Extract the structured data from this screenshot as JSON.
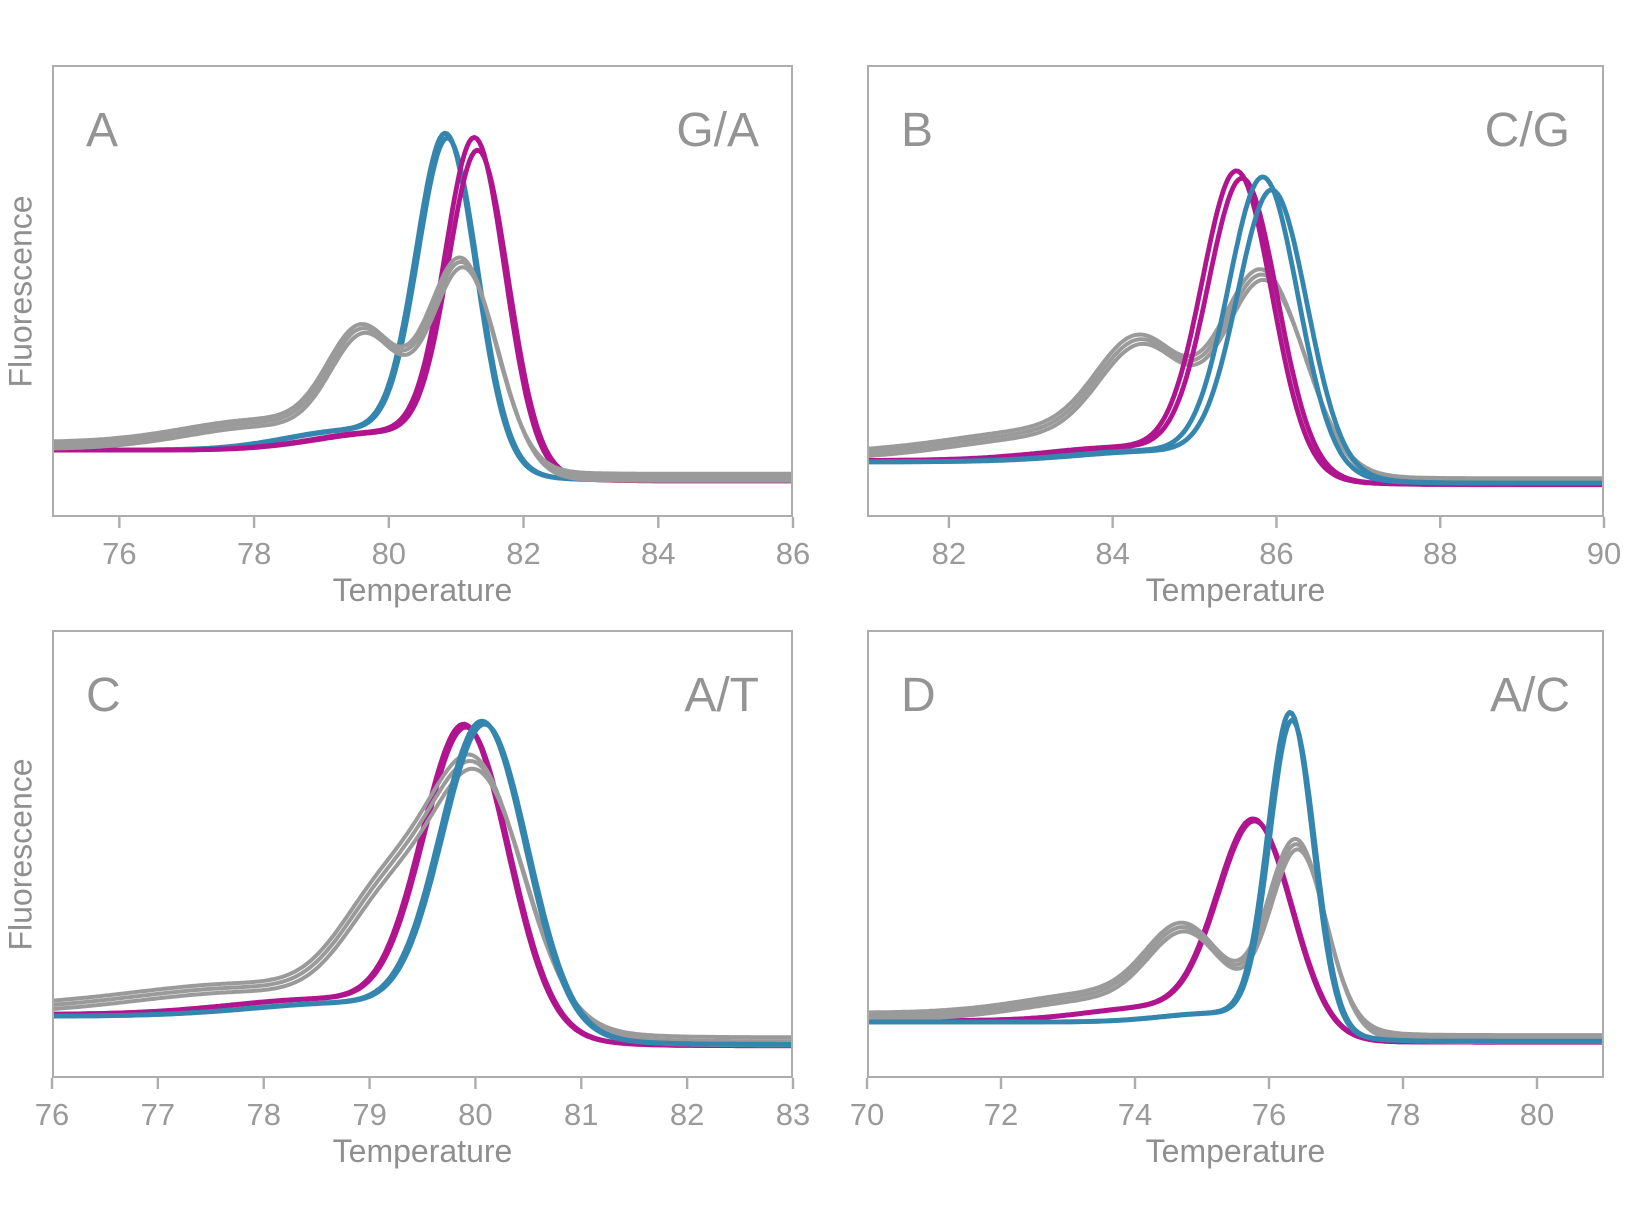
{
  "page": {
    "background": "#ffffff"
  },
  "colors": {
    "blue": "#3486ae",
    "magenta": "#b0148f",
    "gray": "#9a9a9a",
    "frame": "#adadad",
    "tick_text": "#9a9a9a",
    "label_text": "#8f8f8f",
    "panel_letter": "#949494"
  },
  "chart_data": [
    {
      "id": "A",
      "type": "line",
      "corner": "A",
      "genotype": "G/A",
      "xlabel": "Temperature",
      "ylabel": "Fluorescence",
      "xlim": [
        75,
        86
      ],
      "xticks": [
        76,
        78,
        80,
        82,
        84,
        86
      ],
      "series": [
        {
          "name": "series-blue",
          "color": "blue",
          "stroke_width": 4.8,
          "base_left": 0.148,
          "base_right": 0.082,
          "base_drop_center": 81.55,
          "peaks": [
            {
              "tm": 80.85,
              "height": 0.69,
              "width": 0.44
            },
            {
              "tm": 79.5,
              "height": 0.045,
              "width": 1.0
            }
          ],
          "replicates": [
            [
              0,
              1,
              0
            ],
            [
              0.03,
              0.985,
              0
            ]
          ]
        },
        {
          "name": "series-magenta",
          "color": "magenta",
          "stroke_width": 4.8,
          "base_left": 0.148,
          "base_right": 0.08,
          "base_drop_center": 81.95,
          "peaks": [
            {
              "tm": 81.28,
              "height": 0.684,
              "width": 0.44
            },
            {
              "tm": 79.9,
              "height": 0.04,
              "width": 1.0
            }
          ],
          "replicates": [
            [
              0,
              1,
              0
            ],
            [
              0.05,
              0.96,
              0
            ]
          ]
        },
        {
          "name": "series-gray",
          "color": "gray",
          "stroke_width": 4.0,
          "base_left": 0.158,
          "base_right": 0.088,
          "base_drop_center": 81.7,
          "peaks": [
            {
              "tm": 79.62,
              "height": 0.23,
              "width": 0.5
            },
            {
              "tm": 81.1,
              "height": 0.41,
              "width": 0.5
            },
            {
              "tm": 78.2,
              "height": 0.05,
              "width": 1.2
            }
          ],
          "replicates": [
            [
              0,
              1,
              0
            ],
            [
              0.025,
              0.99,
              3.5
            ],
            [
              -0.02,
              1.005,
              -3.5
            ]
          ]
        }
      ]
    },
    {
      "id": "B",
      "type": "line",
      "corner": "B",
      "genotype": "C/G",
      "xlabel": "Temperature",
      "ylabel": "",
      "xlim": [
        81,
        90
      ],
      "xticks": [
        82,
        84,
        86,
        88,
        90
      ],
      "series": [
        {
          "name": "series-gray",
          "color": "gray",
          "stroke_width": 4.0,
          "base_left": 0.135,
          "base_right": 0.078,
          "base_drop_center": 86.45,
          "peaks": [
            {
              "tm": 84.35,
              "height": 0.22,
              "width": 0.52
            },
            {
              "tm": 85.85,
              "height": 0.4,
              "width": 0.5
            },
            {
              "tm": 83.3,
              "height": 0.05,
              "width": 1.2
            }
          ],
          "replicates": [
            [
              0,
              1,
              0
            ],
            [
              0.02,
              0.99,
              3.5
            ],
            [
              -0.02,
              1.01,
              -3.5
            ]
          ]
        },
        {
          "name": "series-magenta",
          "color": "magenta",
          "stroke_width": 4.8,
          "base_left": 0.125,
          "base_right": 0.072,
          "base_drop_center": 86.15,
          "peaks": [
            {
              "tm": 85.52,
              "height": 0.635,
              "width": 0.42
            },
            {
              "tm": 84.2,
              "height": 0.03,
              "width": 1.0
            }
          ],
          "replicates": [
            [
              0,
              1,
              0
            ],
            [
              0.07,
              0.975,
              0
            ]
          ]
        },
        {
          "name": "series-blue",
          "color": "blue",
          "stroke_width": 4.8,
          "base_left": 0.122,
          "base_right": 0.075,
          "base_drop_center": 86.55,
          "peaks": [
            {
              "tm": 85.84,
              "height": 0.625,
              "width": 0.42
            },
            {
              "tm": 84.5,
              "height": 0.025,
              "width": 1.0
            }
          ],
          "replicates": [
            [
              0,
              1,
              0
            ],
            [
              0.11,
              0.955,
              0
            ]
          ]
        }
      ]
    },
    {
      "id": "C",
      "type": "line",
      "corner": "C",
      "genotype": "A/T",
      "xlabel": "Temperature",
      "ylabel": "Fluorescence",
      "xlim": [
        76,
        83
      ],
      "xticks": [
        76,
        77,
        78,
        79,
        80,
        81,
        82,
        83
      ],
      "series": [
        {
          "name": "series-magenta",
          "color": "magenta",
          "stroke_width": 4.8,
          "base_left": 0.142,
          "base_right": 0.072,
          "base_drop_center": 80.5,
          "peaks": [
            {
              "tm": 79.9,
              "height": 0.645,
              "width": 0.4
            },
            {
              "tm": 78.6,
              "height": 0.035,
              "width": 0.9
            }
          ],
          "replicates": [
            [
              0,
              1,
              0
            ],
            [
              0.02,
              0.99,
              0
            ]
          ]
        },
        {
          "name": "series-gray",
          "color": "gray",
          "stroke_width": 4.0,
          "base_left": 0.152,
          "base_right": 0.082,
          "base_drop_center": 80.75,
          "peaks": [
            {
              "tm": 79.15,
              "height": 0.21,
              "width": 0.42
            },
            {
              "tm": 80.02,
              "height": 0.525,
              "width": 0.44
            },
            {
              "tm": 77.9,
              "height": 0.05,
              "width": 1.1
            }
          ],
          "replicates": [
            [
              0,
              1,
              0
            ],
            [
              0.02,
              0.985,
              4
            ],
            [
              -0.02,
              1.01,
              -4
            ]
          ]
        },
        {
          "name": "series-blue",
          "color": "blue",
          "stroke_width": 4.8,
          "base_left": 0.138,
          "base_right": 0.075,
          "base_drop_center": 80.72,
          "peaks": [
            {
              "tm": 80.07,
              "height": 0.655,
              "width": 0.4
            },
            {
              "tm": 78.8,
              "height": 0.03,
              "width": 0.9
            }
          ],
          "replicates": [
            [
              0,
              1,
              0
            ],
            [
              0.025,
              0.99,
              0
            ]
          ]
        }
      ]
    },
    {
      "id": "D",
      "type": "line",
      "corner": "D",
      "genotype": "A/C",
      "xlabel": "Temperature",
      "ylabel": "",
      "xlim": [
        70,
        81
      ],
      "xticks": [
        70,
        72,
        74,
        76,
        78,
        80
      ],
      "series": [
        {
          "name": "series-magenta",
          "color": "magenta",
          "stroke_width": 4.8,
          "base_left": 0.128,
          "base_right": 0.08,
          "base_drop_center": 76.5,
          "peaks": [
            {
              "tm": 75.78,
              "height": 0.445,
              "width": 0.55
            },
            {
              "tm": 74.3,
              "height": 0.03,
              "width": 1.0
            }
          ],
          "replicates": [
            [
              0,
              1,
              0
            ],
            [
              0.02,
              0.99,
              0
            ]
          ]
        },
        {
          "name": "series-gray",
          "color": "gray",
          "stroke_width": 4.0,
          "base_left": 0.138,
          "base_right": 0.088,
          "base_drop_center": 77.1,
          "peaks": [
            {
              "tm": 74.75,
              "height": 0.17,
              "width": 0.55
            },
            {
              "tm": 76.42,
              "height": 0.385,
              "width": 0.42
            },
            {
              "tm": 73.6,
              "height": 0.045,
              "width": 1.2
            }
          ],
          "replicates": [
            [
              0,
              1,
              0
            ],
            [
              0.02,
              0.99,
              3.5
            ],
            [
              -0.015,
              1.01,
              -3.5
            ]
          ]
        },
        {
          "name": "series-blue",
          "color": "blue",
          "stroke_width": 4.8,
          "base_left": 0.125,
          "base_right": 0.082,
          "base_drop_center": 76.9,
          "peaks": [
            {
              "tm": 76.32,
              "height": 0.69,
              "width": 0.335
            },
            {
              "tm": 75.2,
              "height": 0.02,
              "width": 0.8
            }
          ],
          "replicates": [
            [
              0,
              1,
              0
            ],
            [
              0.03,
              0.975,
              0
            ]
          ]
        }
      ]
    }
  ]
}
